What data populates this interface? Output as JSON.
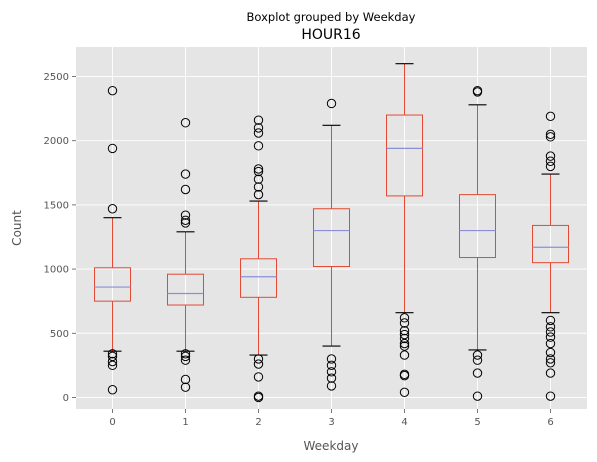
{
  "chart_data": {
    "type": "boxplot",
    "suptitle": "Boxplot grouped by Weekday",
    "title": "HOUR16",
    "xlabel": "Weekday",
    "ylabel": "Count",
    "categories": [
      "0",
      "1",
      "2",
      "3",
      "4",
      "5",
      "6"
    ],
    "ylim": [
      -90,
      2730
    ],
    "yticks": [
      0,
      500,
      1000,
      1500,
      2000,
      2500
    ],
    "grid": true,
    "colors": {
      "background": "#e5e5e5",
      "grid": "#ffffff",
      "box": "#e24a33",
      "median": "#8b8fd8",
      "tick_text": "#555555",
      "flier": "#000000"
    },
    "boxes": [
      {
        "category": "0",
        "whisker_low": 360,
        "q1": 750,
        "median": 860,
        "q3": 1010,
        "whisker_high": 1400,
        "fliers": [
          2390,
          1940,
          1470,
          340,
          320,
          280,
          250,
          60
        ]
      },
      {
        "category": "1",
        "whisker_low": 360,
        "q1": 720,
        "median": 810,
        "q3": 960,
        "whisker_high": 1290,
        "fliers": [
          2140,
          1740,
          1620,
          1420,
          1380,
          1360,
          340,
          320,
          290,
          140,
          80
        ]
      },
      {
        "category": "2",
        "whisker_low": 330,
        "q1": 780,
        "median": 940,
        "q3": 1080,
        "whisker_high": 1530,
        "fliers": [
          2160,
          2100,
          2060,
          1960,
          1780,
          1760,
          1700,
          1640,
          1580,
          300,
          260,
          160,
          10,
          0
        ]
      },
      {
        "category": "3",
        "whisker_low": 400,
        "q1": 1020,
        "median": 1300,
        "q3": 1470,
        "whisker_high": 2120,
        "fliers": [
          2290,
          300,
          250,
          200,
          150,
          90
        ]
      },
      {
        "category": "4",
        "whisker_low": 660,
        "q1": 1570,
        "median": 1940,
        "q3": 2200,
        "whisker_high": 2600,
        "fliers": [
          620,
          580,
          520,
          490,
          460,
          420,
          400,
          330,
          180,
          170,
          40
        ]
      },
      {
        "category": "5",
        "whisker_low": 370,
        "q1": 1090,
        "median": 1300,
        "q3": 1580,
        "whisker_high": 2280,
        "fliers": [
          2390,
          2380,
          330,
          290,
          190,
          10
        ]
      },
      {
        "category": "6",
        "whisker_low": 660,
        "q1": 1050,
        "median": 1170,
        "q3": 1340,
        "whisker_high": 1740,
        "fliers": [
          2190,
          2050,
          2030,
          1880,
          1840,
          1800,
          600,
          550,
          510,
          470,
          420,
          350,
          300,
          270,
          190,
          10
        ]
      }
    ]
  }
}
